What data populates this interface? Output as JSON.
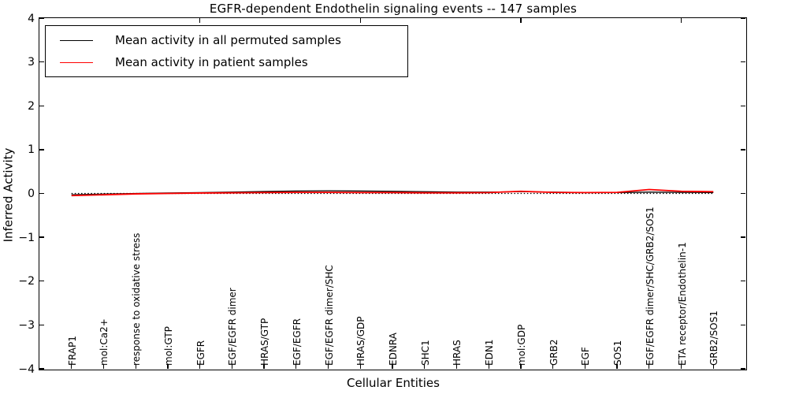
{
  "title": "EGFR-dependent Endothelin signaling events -- 147 samples",
  "axes": {
    "xlabel": "Cellular Entities",
    "ylabel": "Inferred Activity",
    "yticklabels": [
      "4",
      "3",
      "2",
      "1",
      "0",
      "−1",
      "−2",
      "−3",
      "−4"
    ]
  },
  "chart_data": {
    "type": "line",
    "title": "EGFR-dependent Endothelin signaling events -- 147 samples",
    "xlabel": "Cellular Entities",
    "ylabel": "Inferred Activity",
    "ylim": [
      -4,
      4
    ],
    "yticks": [
      4,
      3,
      2,
      1,
      0,
      -1,
      -2,
      -3,
      -4
    ],
    "grid": false,
    "legend_position": "upper left",
    "top_axis_tick_units": [
      5,
      10,
      15,
      20
    ],
    "categories": [
      "FRAP1",
      "mol:Ca2+",
      "response to oxidative stress",
      "mol:GTP",
      "EGFR",
      "EGF/EGFR dimer",
      "HRAS/GTP",
      "EGF/EGFR",
      "EGF/EGFR dimer/SHC",
      "HRAS/GDP",
      "EDNRA",
      "SHC1",
      "HRAS",
      "EDN1",
      "mol:GDP",
      "GRB2",
      "EGF",
      "SOS1",
      "EGF/EGFR dimer/SHC/GRB2/SOS1",
      "ETA receptor/Endothelin-1",
      "GRB2/SOS1"
    ],
    "series": [
      {
        "name": "Mean activity in all permuted samples",
        "color": "#000000",
        "style": "solid",
        "values": [
          -0.03,
          -0.015,
          0.0,
          0.01,
          0.02,
          0.03,
          0.045,
          0.055,
          0.06,
          0.055,
          0.05,
          0.04,
          0.03,
          0.03,
          0.04,
          0.03,
          0.02,
          0.02,
          0.03,
          0.025,
          0.02
        ]
      },
      {
        "name": "Mean activity in patient samples",
        "color": "#ff0000",
        "style": "solid",
        "values": [
          -0.05,
          -0.03,
          -0.01,
          0.0,
          0.01,
          0.015,
          0.02,
          0.025,
          0.025,
          0.02,
          0.02,
          0.015,
          0.015,
          0.02,
          0.05,
          0.025,
          0.02,
          0.025,
          0.09,
          0.05,
          0.04
        ]
      },
      {
        "name": "zero baseline",
        "color": "#000000",
        "style": "dotted",
        "values": [
          0,
          0,
          0,
          0,
          0,
          0,
          0,
          0,
          0,
          0,
          0,
          0,
          0,
          0,
          0,
          0,
          0,
          0,
          0,
          0,
          0
        ]
      }
    ]
  }
}
